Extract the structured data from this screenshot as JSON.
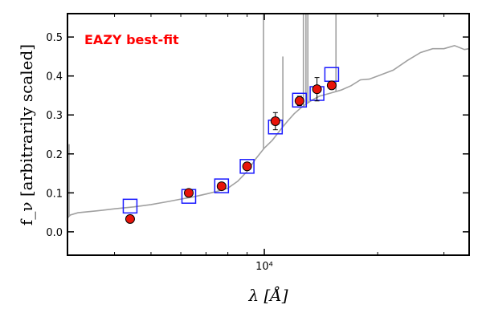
{
  "chart_data": {
    "type": "scatter",
    "title": "",
    "xlabel": "λ [Å]",
    "ylabel": "f_ν [arbitrarily scaled]",
    "xscale": "log",
    "xlim": [
      3000,
      35000
    ],
    "ylim": [
      -0.06,
      0.56
    ],
    "x_tick_labels": [
      {
        "value": 10000,
        "label": "10⁴"
      }
    ],
    "y_ticks": [
      0.0,
      0.1,
      0.2,
      0.3,
      0.4,
      0.5
    ],
    "y_tick_labels": [
      "0.0",
      "0.1",
      "0.2",
      "0.3",
      "0.4",
      "0.5"
    ],
    "x_minor_ticks": [
      4000,
      5000,
      6000,
      7000,
      8000,
      9000,
      20000,
      30000
    ],
    "grid": false,
    "annotation": {
      "text": "EAZY best-fit",
      "color": "#ff0000"
    },
    "colors": {
      "model": "#a0a0a0",
      "observed_fill": "#e8140a",
      "model_flux_box": "#1a1aff",
      "errorbar": "#000000"
    },
    "series": [
      {
        "kind": "observed",
        "x": [
          4400,
          6300,
          7700,
          9000,
          10700,
          12400,
          13800,
          15100
        ],
        "values": [
          0.033,
          0.1,
          0.117,
          0.168,
          0.284,
          0.336,
          0.366,
          0.376
        ],
        "errors": [
          0.01,
          0.004,
          0.004,
          0.005,
          0.022,
          0.012,
          0.03,
          0.01
        ]
      },
      {
        "kind": "model-flux",
        "x": [
          4400,
          6300,
          7700,
          9000,
          10700,
          12400,
          13800,
          15100
        ],
        "values": [
          0.066,
          0.091,
          0.118,
          0.168,
          0.269,
          0.338,
          0.355,
          0.404
        ]
      },
      {
        "kind": "model-sed",
        "x": [
          3000,
          3050,
          3200,
          3600,
          4000,
          4500,
          5000,
          5500,
          6000,
          6500,
          7000,
          7500,
          8000,
          8500,
          9000,
          9500,
          10000,
          10500,
          11000,
          11500,
          12000,
          12500,
          13000,
          13500,
          14000,
          15000,
          16000,
          17000,
          18000,
          19000,
          20000,
          22000,
          24000,
          26000,
          28000,
          30000,
          32000,
          34000,
          35000
        ],
        "values": [
          0.035,
          0.043,
          0.049,
          0.054,
          0.059,
          0.064,
          0.07,
          0.077,
          0.084,
          0.09,
          0.097,
          0.104,
          0.112,
          0.13,
          0.155,
          0.188,
          0.215,
          0.235,
          0.26,
          0.283,
          0.303,
          0.318,
          0.33,
          0.34,
          0.348,
          0.356,
          0.364,
          0.375,
          0.39,
          0.392,
          0.4,
          0.415,
          0.44,
          0.46,
          0.47,
          0.47,
          0.478,
          0.468,
          0.47
        ],
        "emission_lines": [
          {
            "x": 3030,
            "peak": 0.225
          },
          {
            "x": 9950,
            "peak": 0.56
          },
          {
            "x": 11200,
            "peak": 0.45
          },
          {
            "x": 12700,
            "peak": 0.56
          },
          {
            "x": 12900,
            "peak": 0.56
          },
          {
            "x": 13050,
            "peak": 0.56
          },
          {
            "x": 15500,
            "peak": 0.56
          }
        ]
      }
    ]
  }
}
